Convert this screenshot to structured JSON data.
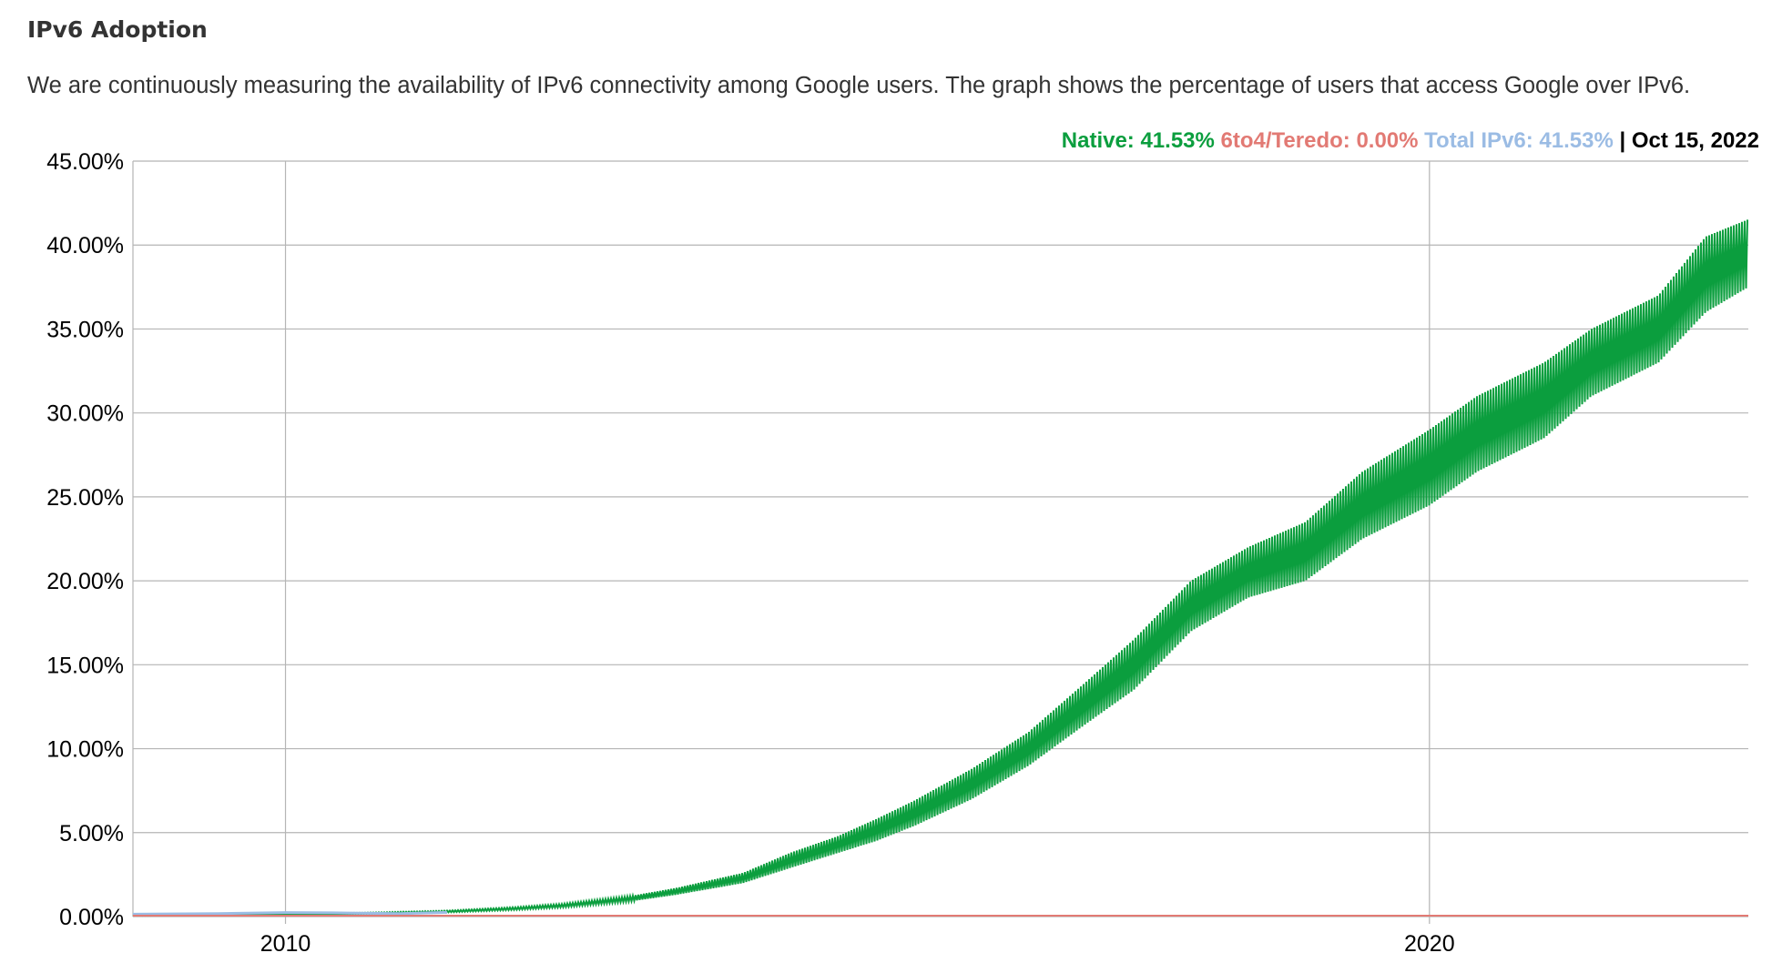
{
  "page": {
    "title": "IPv6 Adoption",
    "description": "We are continuously measuring the availability of IPv6 connectivity among Google users. The graph shows the percentage of users that access Google over IPv6."
  },
  "legend": {
    "native_label": "Native: 41.53%",
    "teredo_label": "6to4/Teredo: 0.00%",
    "total_label": "Total IPv6: 41.53%",
    "separator": " | ",
    "date_label": "Oct 15, 2022"
  },
  "colors": {
    "native": "#0b9e3e",
    "teredo": "#e27a74",
    "total": "#9bbce4",
    "grid": "#b5b5b5"
  },
  "chart_data": {
    "type": "area",
    "title": "",
    "xlabel": "",
    "ylabel": "",
    "xlim": [
      "2008-09-01",
      "2022-10-15"
    ],
    "ylim": [
      0,
      45
    ],
    "yticks": [
      0,
      5,
      10,
      15,
      20,
      25,
      30,
      35,
      40,
      45
    ],
    "ytick_labels": [
      "0.00%",
      "5.00%",
      "10.00%",
      "15.00%",
      "20.00%",
      "25.00%",
      "30.00%",
      "35.00%",
      "40.00%",
      "45.00%"
    ],
    "xticks": [
      "2010-01-01",
      "2020-01-01"
    ],
    "xtick_labels": [
      "2010",
      "2020"
    ],
    "grid": true,
    "series": [
      {
        "name": "Native",
        "color": "#0b9e3e",
        "x": [
          "2008-09-01",
          "2009-06-01",
          "2010-06-01",
          "2011-06-01",
          "2012-01-01",
          "2012-06-01",
          "2013-01-01",
          "2013-06-01",
          "2014-01-01",
          "2014-06-01",
          "2014-11-01",
          "2015-03-01",
          "2015-07-01",
          "2016-01-01",
          "2016-07-01",
          "2017-01-01",
          "2017-06-01",
          "2017-12-01",
          "2018-06-01",
          "2018-12-01",
          "2019-06-01",
          "2020-01-01",
          "2020-06-01",
          "2021-01-01",
          "2021-06-01",
          "2022-01-01",
          "2022-06-01",
          "2022-10-15"
        ],
        "low": [
          0.05,
          0.08,
          0.1,
          0.25,
          0.4,
          0.55,
          0.9,
          1.3,
          2.0,
          2.9,
          3.8,
          4.5,
          5.4,
          7.0,
          9.0,
          11.5,
          13.5,
          17.0,
          19.0,
          20.0,
          22.5,
          24.5,
          26.5,
          28.5,
          31.0,
          33.0,
          36.0,
          37.5
        ],
        "high": [
          0.08,
          0.12,
          0.18,
          0.35,
          0.55,
          0.75,
          1.2,
          1.7,
          2.6,
          3.8,
          4.8,
          5.8,
          6.9,
          8.8,
          11.0,
          14.0,
          16.5,
          20.0,
          22.0,
          23.5,
          26.5,
          29.0,
          31.0,
          33.0,
          35.0,
          37.0,
          40.5,
          41.53
        ]
      },
      {
        "name": "6to4/Teredo",
        "color": "#e27a74",
        "x": [
          "2008-09-01",
          "2022-10-15"
        ],
        "values": [
          0.0,
          0.0
        ]
      },
      {
        "name": "Total IPv6",
        "color": "#9bbce4",
        "x": [
          "2008-09-01",
          "2009-06-01",
          "2010-01-01",
          "2010-06-01",
          "2011-01-01",
          "2011-06-01"
        ],
        "values": [
          0.14,
          0.18,
          0.24,
          0.22,
          0.18,
          0.25
        ]
      }
    ]
  }
}
